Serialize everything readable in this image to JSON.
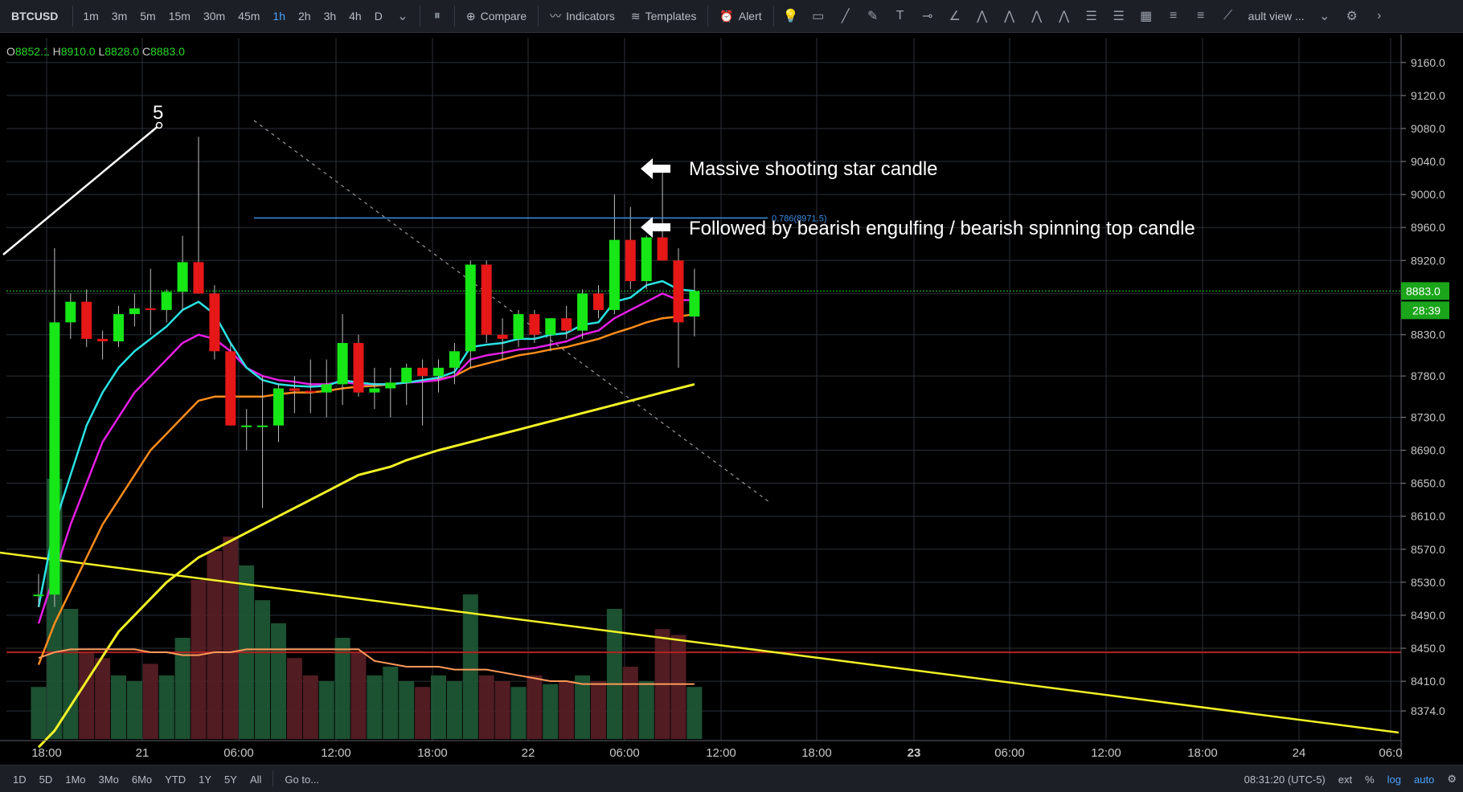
{
  "toolbar": {
    "symbol": "BTCUSD",
    "intervals": [
      "1m",
      "3m",
      "5m",
      "15m",
      "30m",
      "45m",
      "1h",
      "2h",
      "3h",
      "4h",
      "D"
    ],
    "active_interval": "1h",
    "compare_label": "Compare",
    "indicators_label": "Indicators",
    "templates_label": "Templates",
    "alert_label": "Alert",
    "layout_label": "ault view ..."
  },
  "ohlc": {
    "o_label": "O",
    "o": "8852.1",
    "h_label": "H",
    "h": "8910.0",
    "l_label": "L",
    "l": "8828.0",
    "c_label": "C",
    "c": "8883.0"
  },
  "annotations": {
    "wave_label": "5",
    "fib_label": "0.786(8971.5)",
    "note1": "Massive shooting star candle",
    "note2": "Followed by bearish engulfing / bearish spinning top candle"
  },
  "price_axis": {
    "ticks": [
      "9160.0",
      "9120.0",
      "9080.0",
      "9040.0",
      "9000.0",
      "8960.0",
      "8920.0",
      "8880.0",
      "8830.0",
      "8780.0",
      "8730.0",
      "8690.0",
      "8650.0",
      "8610.0",
      "8570.0",
      "8530.0",
      "8490.0",
      "8450.0",
      "8410.0",
      "8374.0"
    ],
    "current_price": "8883.0",
    "countdown": "28:39"
  },
  "time_axis": {
    "labels": [
      "18:00",
      "21",
      "06:00",
      "12:00",
      "18:00",
      "22",
      "06:00",
      "12:00",
      "18:00",
      "23",
      "06:00",
      "12:00",
      "18:00",
      "24",
      "06:0"
    ],
    "bold_label": "23"
  },
  "bottombar": {
    "ranges": [
      "1D",
      "5D",
      "1Mo",
      "3Mo",
      "6Mo",
      "YTD",
      "1Y",
      "5Y",
      "All"
    ],
    "goto": "Go to...",
    "clock": "08:31:20 (UTC-5)",
    "ext": "ext",
    "percent": "%",
    "log": "log",
    "auto": "auto"
  },
  "colors": {
    "up": "#17e617",
    "down": "#e61717",
    "ema_fast": "#29e3e3",
    "ema_mid": "#e61ee6",
    "ema_slow": "#ff8c1a",
    "ma_long": "#f2f226",
    "fib": "#3a8ee6"
  },
  "chart_data": {
    "type": "candlestick",
    "title": "BTCUSD 1h",
    "ylim": [
      8340,
      9190
    ],
    "candles": [
      {
        "o": 8515,
        "h": 8540,
        "l": 8500,
        "c": 8515
      },
      {
        "o": 8515,
        "h": 8935,
        "l": 8500,
        "c": 8845
      },
      {
        "o": 8845,
        "h": 8880,
        "l": 8825,
        "c": 8870
      },
      {
        "o": 8870,
        "h": 8885,
        "l": 8815,
        "c": 8825
      },
      {
        "o": 8825,
        "h": 8835,
        "l": 8800,
        "c": 8822
      },
      {
        "o": 8822,
        "h": 8865,
        "l": 8815,
        "c": 8855
      },
      {
        "o": 8855,
        "h": 8880,
        "l": 8840,
        "c": 8862
      },
      {
        "o": 8862,
        "h": 8910,
        "l": 8830,
        "c": 8860
      },
      {
        "o": 8860,
        "h": 8885,
        "l": 8845,
        "c": 8882
      },
      {
        "o": 8882,
        "h": 8950,
        "l": 8860,
        "c": 8918
      },
      {
        "o": 8918,
        "h": 9070,
        "l": 8880,
        "c": 8880
      },
      {
        "o": 8880,
        "h": 8890,
        "l": 8800,
        "c": 8810
      },
      {
        "o": 8810,
        "h": 8820,
        "l": 8720,
        "c": 8720
      },
      {
        "o": 8720,
        "h": 8740,
        "l": 8690,
        "c": 8720
      },
      {
        "o": 8720,
        "h": 8780,
        "l": 8620,
        "c": 8720
      },
      {
        "o": 8720,
        "h": 8770,
        "l": 8700,
        "c": 8765
      },
      {
        "o": 8765,
        "h": 8780,
        "l": 8735,
        "c": 8762
      },
      {
        "o": 8762,
        "h": 8800,
        "l": 8735,
        "c": 8760
      },
      {
        "o": 8760,
        "h": 8800,
        "l": 8730,
        "c": 8770
      },
      {
        "o": 8770,
        "h": 8855,
        "l": 8745,
        "c": 8820
      },
      {
        "o": 8820,
        "h": 8830,
        "l": 8755,
        "c": 8760
      },
      {
        "o": 8760,
        "h": 8790,
        "l": 8740,
        "c": 8765
      },
      {
        "o": 8765,
        "h": 8790,
        "l": 8730,
        "c": 8772
      },
      {
        "o": 8772,
        "h": 8795,
        "l": 8745,
        "c": 8790
      },
      {
        "o": 8790,
        "h": 8800,
        "l": 8720,
        "c": 8780
      },
      {
        "o": 8780,
        "h": 8800,
        "l": 8760,
        "c": 8790
      },
      {
        "o": 8790,
        "h": 8820,
        "l": 8770,
        "c": 8810
      },
      {
        "o": 8810,
        "h": 8920,
        "l": 8790,
        "c": 8915
      },
      {
        "o": 8915,
        "h": 8920,
        "l": 8820,
        "c": 8830
      },
      {
        "o": 8830,
        "h": 8850,
        "l": 8800,
        "c": 8825
      },
      {
        "o": 8825,
        "h": 8860,
        "l": 8815,
        "c": 8855
      },
      {
        "o": 8855,
        "h": 8860,
        "l": 8820,
        "c": 8830
      },
      {
        "o": 8830,
        "h": 8850,
        "l": 8810,
        "c": 8850
      },
      {
        "o": 8850,
        "h": 8865,
        "l": 8825,
        "c": 8835
      },
      {
        "o": 8835,
        "h": 8885,
        "l": 8825,
        "c": 8880
      },
      {
        "o": 8880,
        "h": 8890,
        "l": 8850,
        "c": 8860
      },
      {
        "o": 8860,
        "h": 9000,
        "l": 8855,
        "c": 8945
      },
      {
        "o": 8945,
        "h": 8985,
        "l": 8885,
        "c": 8895
      },
      {
        "o": 8895,
        "h": 8950,
        "l": 8885,
        "c": 8948
      },
      {
        "o": 8948,
        "h": 9030,
        "l": 8920,
        "c": 8920
      },
      {
        "o": 8920,
        "h": 8935,
        "l": 8790,
        "c": 8845
      },
      {
        "o": 8852.1,
        "h": 8910,
        "l": 8828,
        "c": 8883
      }
    ],
    "ema_fast": [
      8500,
      8600,
      8660,
      8720,
      8760,
      8790,
      8810,
      8825,
      8840,
      8860,
      8870,
      8855,
      8820,
      8790,
      8775,
      8770,
      8768,
      8767,
      8768,
      8775,
      8772,
      8770,
      8770,
      8772,
      8775,
      8778,
      8785,
      8815,
      8818,
      8820,
      8825,
      8825,
      8830,
      8832,
      8842,
      8845,
      8870,
      8875,
      8890,
      8895,
      8885,
      8883
    ],
    "ema_mid": [
      8480,
      8540,
      8600,
      8650,
      8700,
      8730,
      8760,
      8780,
      8800,
      8820,
      8830,
      8825,
      8810,
      8790,
      8780,
      8775,
      8773,
      8770,
      8770,
      8773,
      8770,
      8770,
      8770,
      8772,
      8773,
      8775,
      8780,
      8800,
      8805,
      8808,
      8812,
      8814,
      8818,
      8822,
      8830,
      8835,
      8850,
      8860,
      8870,
      8880,
      8872,
      8872
    ],
    "ema_slow": [
      8430,
      8480,
      8520,
      8560,
      8600,
      8630,
      8660,
      8690,
      8710,
      8730,
      8750,
      8755,
      8755,
      8755,
      8755,
      8758,
      8760,
      8760,
      8762,
      8765,
      8767,
      8768,
      8770,
      8772,
      8774,
      8776,
      8780,
      8790,
      8795,
      8800,
      8805,
      8808,
      8812,
      8815,
      8820,
      8825,
      8832,
      8838,
      8845,
      8850,
      8852,
      8855
    ],
    "ma_long": [
      8330,
      8350,
      8380,
      8410,
      8440,
      8470,
      8490,
      8510,
      8530,
      8545,
      8560,
      8570,
      8580,
      8590,
      8600,
      8610,
      8620,
      8630,
      8640,
      8650,
      8660,
      8665,
      8670,
      8678,
      8684,
      8690,
      8695,
      8700,
      8705,
      8710,
      8715,
      8720,
      8725,
      8730,
      8735,
      8740,
      8745,
      8750,
      8755,
      8760,
      8765,
      8770
    ],
    "volume": [
      18,
      90,
      45,
      30,
      28,
      22,
      20,
      26,
      22,
      35,
      55,
      65,
      70,
      60,
      48,
      40,
      28,
      22,
      20,
      35,
      30,
      22,
      25,
      20,
      18,
      22,
      20,
      50,
      22,
      20,
      18,
      22,
      19,
      20,
      22,
      20,
      45,
      25,
      20,
      38,
      36,
      18
    ],
    "volume_ma": [
      28,
      30,
      31,
      31,
      31,
      31,
      31,
      30,
      30,
      29,
      29,
      30,
      30,
      31,
      31,
      31,
      31,
      31,
      31,
      31,
      31,
      27,
      26,
      25,
      25,
      25,
      24,
      24,
      24,
      23,
      22,
      21,
      20,
      20,
      19,
      19,
      19,
      19,
      19,
      19,
      19,
      19
    ],
    "hlines": [
      {
        "y": 8883.0,
        "style": "dotted-green"
      },
      {
        "y": 8445,
        "style": "solid-red"
      }
    ],
    "fib_line": {
      "y": 8971.5,
      "label": "0.786(8971.5)"
    }
  }
}
